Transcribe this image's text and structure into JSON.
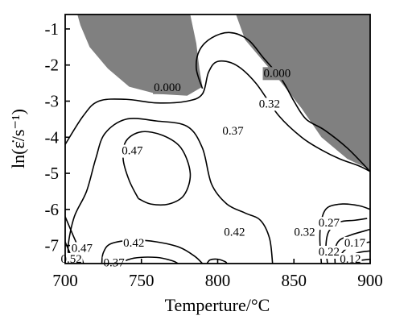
{
  "chart_data": {
    "type": "contour",
    "xlabel": "Temperture/°C",
    "ylabel": "ln(ε̇/s⁻¹)",
    "xlim": [
      700,
      900
    ],
    "ylim": [
      -7.5,
      -0.6
    ],
    "xticks": [
      "700",
      "750",
      "800",
      "850",
      "900"
    ],
    "yticks": [
      "-1",
      "-2",
      "-3",
      "-4",
      "-5",
      "-6",
      "-7"
    ],
    "instability_color": "#808080",
    "instability_regions": [
      {
        "label": "0.000",
        "polygon": [
          [
            708,
            -0.6
          ],
          [
            782,
            -0.6
          ],
          [
            786,
            -1.4
          ],
          [
            788,
            -2.1
          ],
          [
            790,
            -2.6
          ],
          [
            780,
            -2.85
          ],
          [
            760,
            -2.8
          ],
          [
            742,
            -2.6
          ],
          [
            728,
            -2.1
          ],
          [
            716,
            -1.5
          ],
          [
            710,
            -0.9
          ]
        ]
      },
      {
        "label": "0.000",
        "polygon": [
          [
            812,
            -0.6
          ],
          [
            900,
            -0.6
          ],
          [
            900,
            -4.9
          ],
          [
            885,
            -4.6
          ],
          [
            868,
            -4.0
          ],
          [
            855,
            -3.2
          ],
          [
            842,
            -2.5
          ],
          [
            830,
            -1.9
          ],
          [
            818,
            -1.3
          ]
        ]
      }
    ],
    "contour_levels": [
      "0.000",
      "0.12",
      "0.17",
      "0.22",
      "0.27",
      "0.32",
      "0.37",
      "0.42",
      "0.47",
      "0.52"
    ],
    "contour_labels": [
      {
        "text": "0.000",
        "x": 767,
        "y": -2.64
      },
      {
        "text": "0.000",
        "x": 839,
        "y": -2.25
      },
      {
        "text": "0.32",
        "x": 834,
        "y": -3.1
      },
      {
        "text": "0.37",
        "x": 810,
        "y": -3.85
      },
      {
        "text": "0.47",
        "x": 744,
        "y": -4.4
      },
      {
        "text": "0.42",
        "x": 745,
        "y": -6.95
      },
      {
        "text": "0.42",
        "x": 811,
        "y": -6.65
      },
      {
        "text": "0.32",
        "x": 857,
        "y": -6.65
      },
      {
        "text": "0.27",
        "x": 873,
        "y": -6.4
      },
      {
        "text": "0.22",
        "x": 873,
        "y": -7.2
      },
      {
        "text": "0.17",
        "x": 890,
        "y": -6.95
      },
      {
        "text": "0.12",
        "x": 887,
        "y": -7.4
      },
      {
        "text": "0.47",
        "x": 711,
        "y": -7.1
      },
      {
        "text": "0.52",
        "x": 704,
        "y": -7.4
      },
      {
        "text": "0.37",
        "x": 732,
        "y": -7.5
      }
    ],
    "contours": [
      {
        "level": "0.32",
        "points": [
          [
            790,
            -2.65
          ],
          [
            786,
            -2.1
          ],
          [
            788,
            -1.6
          ],
          [
            796,
            -1.25
          ],
          [
            808,
            -1.1
          ],
          [
            820,
            -1.3
          ],
          [
            830,
            -1.8
          ],
          [
            842,
            -2.4
          ],
          [
            850,
            -3.0
          ],
          [
            858,
            -3.5
          ],
          [
            870,
            -3.8
          ],
          [
            885,
            -4.3
          ],
          [
            900,
            -4.95
          ]
        ]
      },
      {
        "level": "0.37",
        "points": [
          [
            700,
            -4.2
          ],
          [
            712,
            -3.4
          ],
          [
            722,
            -3.0
          ],
          [
            740,
            -2.95
          ],
          [
            760,
            -3.05
          ],
          [
            780,
            -3.0
          ],
          [
            790,
            -2.8
          ],
          [
            794,
            -2.2
          ],
          [
            800,
            -1.9
          ],
          [
            812,
            -2.0
          ],
          [
            825,
            -2.5
          ],
          [
            840,
            -3.4
          ],
          [
            855,
            -4.0
          ],
          [
            868,
            -4.35
          ],
          [
            880,
            -4.6
          ],
          [
            893,
            -4.8
          ],
          [
            900,
            -4.95
          ]
        ]
      },
      {
        "level": "0.42",
        "points": [
          [
            703,
            -7.5
          ],
          [
            702,
            -7.0
          ],
          [
            706,
            -6.2
          ],
          [
            714,
            -5.5
          ],
          [
            720,
            -4.6
          ],
          [
            726,
            -3.9
          ],
          [
            740,
            -3.5
          ],
          [
            760,
            -3.55
          ],
          [
            780,
            -3.7
          ],
          [
            790,
            -4.3
          ],
          [
            796,
            -5.3
          ],
          [
            806,
            -5.85
          ],
          [
            818,
            -6.1
          ],
          [
            828,
            -6.3
          ],
          [
            834,
            -6.8
          ],
          [
            836,
            -7.5
          ]
        ]
      },
      {
        "level": "0.47",
        "points": [
          [
            748,
            -5.7
          ],
          [
            742,
            -5.2
          ],
          [
            738,
            -4.6
          ],
          [
            740,
            -4.1
          ],
          [
            750,
            -3.85
          ],
          [
            764,
            -3.95
          ],
          [
            776,
            -4.3
          ],
          [
            782,
            -5.0
          ],
          [
            778,
            -5.6
          ],
          [
            768,
            -5.85
          ],
          [
            756,
            -5.85
          ],
          [
            748,
            -5.7
          ]
        ]
      },
      {
        "level": "0.37",
        "points": [
          [
            868,
            -7.5
          ],
          [
            867,
            -6.8
          ],
          [
            868,
            -6.3
          ],
          [
            872,
            -5.95
          ],
          [
            882,
            -5.85
          ],
          [
            893,
            -5.9
          ],
          [
            900,
            -6.0
          ]
        ]
      },
      {
        "level": "0.32",
        "points": [
          [
            872,
            -7.5
          ],
          [
            871,
            -7.0
          ],
          [
            873,
            -6.6
          ],
          [
            880,
            -6.35
          ],
          [
            890,
            -6.3
          ],
          [
            898,
            -6.25
          ]
        ]
      },
      {
        "level": "0.27",
        "points": [
          [
            877,
            -7.5
          ],
          [
            877,
            -7.1
          ],
          [
            880,
            -6.85
          ],
          [
            888,
            -6.7
          ],
          [
            896,
            -6.6
          ],
          [
            900,
            -6.55
          ]
        ]
      },
      {
        "level": "0.22",
        "points": [
          [
            881,
            -7.5
          ],
          [
            881,
            -7.25
          ],
          [
            886,
            -7.05
          ],
          [
            894,
            -6.95
          ],
          [
            900,
            -6.9
          ]
        ]
      },
      {
        "level": "0.17",
        "points": [
          [
            885,
            -7.5
          ],
          [
            886,
            -7.35
          ],
          [
            892,
            -7.2
          ],
          [
            900,
            -7.15
          ]
        ]
      },
      {
        "level": "0.12",
        "points": [
          [
            889,
            -7.5
          ],
          [
            893,
            -7.42
          ],
          [
            900,
            -7.38
          ]
        ]
      },
      {
        "level": "0.47",
        "points": [
          [
            700,
            -6.2
          ],
          [
            705,
            -6.7
          ],
          [
            709,
            -7.1
          ],
          [
            712,
            -7.5
          ]
        ]
      },
      {
        "level": "0.52",
        "points": [
          [
            700,
            -6.9
          ],
          [
            703,
            -7.2
          ],
          [
            706,
            -7.5
          ]
        ]
      },
      {
        "level": "0.37",
        "points": [
          [
            724,
            -7.5
          ],
          [
            725,
            -7.2
          ],
          [
            730,
            -6.95
          ],
          [
            745,
            -6.85
          ],
          [
            760,
            -6.9
          ],
          [
            775,
            -7.05
          ],
          [
            785,
            -7.3
          ],
          [
            790,
            -7.5
          ]
        ]
      },
      {
        "level": "0.32",
        "points": [
          [
            735,
            -7.5
          ],
          [
            745,
            -7.35
          ],
          [
            760,
            -7.33
          ],
          [
            770,
            -7.42
          ],
          [
            774,
            -7.5
          ]
        ]
      },
      {
        "level": "0.42",
        "points": [
          [
            793,
            -7.5
          ],
          [
            795,
            -7.4
          ],
          [
            800,
            -7.38
          ],
          [
            805,
            -7.45
          ],
          [
            806,
            -7.5
          ]
        ]
      }
    ]
  }
}
